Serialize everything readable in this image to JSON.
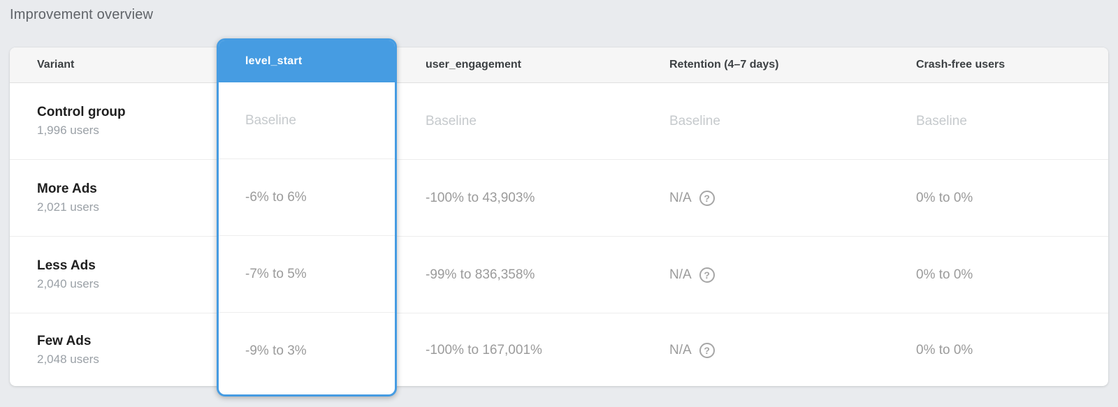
{
  "page": {
    "title": "Improvement overview"
  },
  "colors": {
    "accent_blue": "#469ce2",
    "page_background": "#e9ebee",
    "card_background": "#ffffff",
    "header_background": "#f6f6f6",
    "baseline_text": "#c6cacd",
    "value_text": "#9b9b9b"
  },
  "table": {
    "columns": {
      "variant": "Variant",
      "level_start": "level_start",
      "user_engagement": "user_engagement",
      "retention": "Retention (4–7 days)",
      "crash_free": "Crash-free users"
    },
    "selected_column": {
      "label": "level_start",
      "values": [
        "Baseline",
        "-6% to 6%",
        "-7% to 5%",
        "-9% to 3%"
      ]
    },
    "help_icon_glyph": "?",
    "rows": [
      {
        "variant": "Control group",
        "users": "1,996 users",
        "user_engagement": "Baseline",
        "retention": "Baseline",
        "crash_free": "Baseline"
      },
      {
        "variant": "More Ads",
        "users": "2,021 users",
        "user_engagement": "-100% to 43,903%",
        "retention": "N/A",
        "crash_free": "0% to 0%"
      },
      {
        "variant": "Less Ads",
        "users": "2,040 users",
        "user_engagement": "-99% to 836,358%",
        "retention": "N/A",
        "crash_free": "0% to 0%"
      },
      {
        "variant": "Few Ads",
        "users": "2,048 users",
        "user_engagement": "-100% to 167,001%",
        "retention": "N/A",
        "crash_free": "0% to 0%"
      }
    ]
  }
}
